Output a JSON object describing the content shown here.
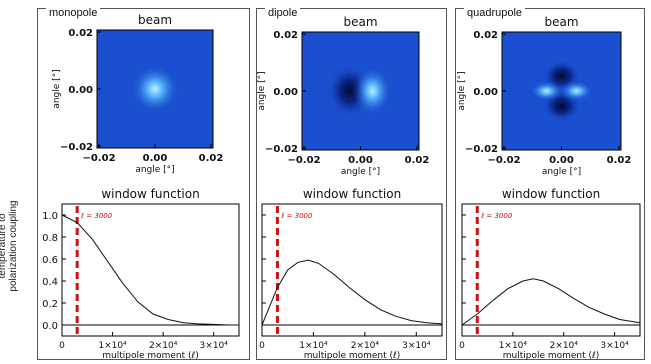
{
  "panels": [
    {
      "name": "monopole",
      "beam_title": "beam",
      "wf_title": "window function"
    },
    {
      "name": "dipole",
      "beam_title": "beam",
      "wf_title": "window function"
    },
    {
      "name": "quadrupole",
      "beam_title": "beam",
      "wf_title": "window function"
    }
  ],
  "beam_axes": {
    "xlabel": "angle [°]",
    "ylabel": "angle [°]",
    "ticks": [
      "−0.02",
      "0.00",
      "0.02"
    ]
  },
  "window_axes": {
    "ylabel_line1": "temperature to",
    "ylabel_line2": "polarization coupling",
    "xlabel": "multipole moment (ℓ)",
    "yticks": [
      "1.0",
      "0.8",
      "0.6",
      "0.4",
      "0.2",
      "0.0"
    ],
    "xticks": [
      "0",
      "1×10⁴",
      "2×10⁴",
      "3×10⁴"
    ],
    "marker_label": "ℓ = 3000",
    "marker_value": 3000
  },
  "colors": {
    "beam_bg": "#1a4fcf",
    "marker": "#cc1111",
    "curve": "#111111"
  },
  "chart_data": {
    "type": "line",
    "xlim": [
      0,
      35000
    ],
    "ylim": [
      -0.1,
      1.1
    ],
    "series": [
      {
        "name": "monopole",
        "x": [
          0,
          3000,
          6000,
          9000,
          12000,
          15000,
          18000,
          21000,
          24000,
          27000,
          30000,
          33000,
          35000
        ],
        "y": [
          1.0,
          0.93,
          0.78,
          0.58,
          0.38,
          0.21,
          0.1,
          0.05,
          0.02,
          0.01,
          0.005,
          0.0,
          0.0
        ]
      },
      {
        "name": "dipole",
        "x": [
          0,
          3000,
          5000,
          7000,
          9000,
          11000,
          14000,
          17000,
          20000,
          23000,
          26000,
          29000,
          32000,
          35000
        ],
        "y": [
          0.0,
          0.34,
          0.5,
          0.57,
          0.59,
          0.56,
          0.46,
          0.34,
          0.23,
          0.14,
          0.08,
          0.04,
          0.02,
          0.01
        ]
      },
      {
        "name": "quadrupole",
        "x": [
          0,
          3000,
          6000,
          9000,
          12000,
          14000,
          16000,
          19000,
          22000,
          25000,
          28000,
          31000,
          35000
        ],
        "y": [
          0.0,
          0.1,
          0.22,
          0.33,
          0.4,
          0.42,
          0.4,
          0.33,
          0.24,
          0.16,
          0.1,
          0.05,
          0.02
        ]
      }
    ]
  }
}
